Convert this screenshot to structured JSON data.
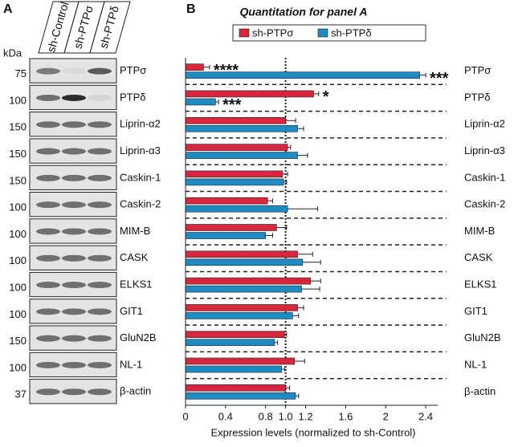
{
  "panel_a": {
    "label": "A",
    "unit": "kDa",
    "columns": [
      "sh-Control",
      "sh-PTPσ",
      "sh-PTPδ"
    ],
    "rows": [
      {
        "name": "PTPσ",
        "mw": 75
      },
      {
        "name": "PTPδ",
        "mw": 100
      },
      {
        "name": "Liprin-α2",
        "mw": 150
      },
      {
        "name": "Liprin-α3",
        "mw": 150
      },
      {
        "name": "Caskin-1",
        "mw": 150
      },
      {
        "name": "Caskin-2",
        "mw": 100
      },
      {
        "name": "MIM-B",
        "mw": 100
      },
      {
        "name": "CASK",
        "mw": 100
      },
      {
        "name": "ELKS1",
        "mw": 100
      },
      {
        "name": "GIT1",
        "mw": 100
      },
      {
        "name": "GluN2B",
        "mw": 150
      },
      {
        "name": "NL-1",
        "mw": 100
      },
      {
        "name": "β-actin",
        "mw": 37
      }
    ]
  },
  "chart_data": {
    "type": "hbar",
    "panel_label": "B",
    "title": "Quantitation for panel A",
    "x_label": "Expression levels (normalized to sh-Control)",
    "categories": [
      "PTPσ",
      "PTPδ",
      "Liprin-α2",
      "Liprin-α3",
      "Caskin-1",
      "Caskin-2",
      "MIM-B",
      "CASK",
      "ELKS1",
      "GIT1",
      "GluN2B",
      "NL-1",
      "β-actin"
    ],
    "series": [
      {
        "name": "sh-PTPσ",
        "color": "#d7263d",
        "values": [
          0.18,
          1.28,
          1.0,
          1.02,
          0.97,
          0.82,
          0.91,
          1.12,
          1.25,
          1.12,
          0.99,
          1.09,
          1.0
        ],
        "errors": [
          0.06,
          0.05,
          0.1,
          0.03,
          0.05,
          0.05,
          0.1,
          0.15,
          0.1,
          0.06,
          0.02,
          0.1,
          0.04
        ],
        "significance": [
          "****",
          "*",
          null,
          null,
          null,
          null,
          null,
          null,
          null,
          null,
          null,
          null,
          null
        ]
      },
      {
        "name": "sh-PTPδ",
        "color": "#1e8bc3",
        "values": [
          2.34,
          0.3,
          1.12,
          1.12,
          0.98,
          1.02,
          0.8,
          1.17,
          1.16,
          1.07,
          0.89,
          0.96,
          1.1
        ],
        "errors": [
          0.06,
          0.03,
          0.06,
          0.1,
          0.03,
          0.3,
          0.07,
          0.18,
          0.18,
          0.06,
          0.03,
          0.03,
          0.03
        ],
        "significance": [
          "***",
          "***",
          null,
          null,
          null,
          null,
          null,
          null,
          null,
          null,
          null,
          null,
          null
        ]
      }
    ],
    "xlim": [
      0,
      2.52
    ],
    "xticks": [
      0,
      0.4,
      0.8,
      {
        "value": 1,
        "label": "1.0"
      },
      1.2,
      1.6,
      2.0,
      2.4
    ],
    "reference_line": 1,
    "legend": "top"
  }
}
